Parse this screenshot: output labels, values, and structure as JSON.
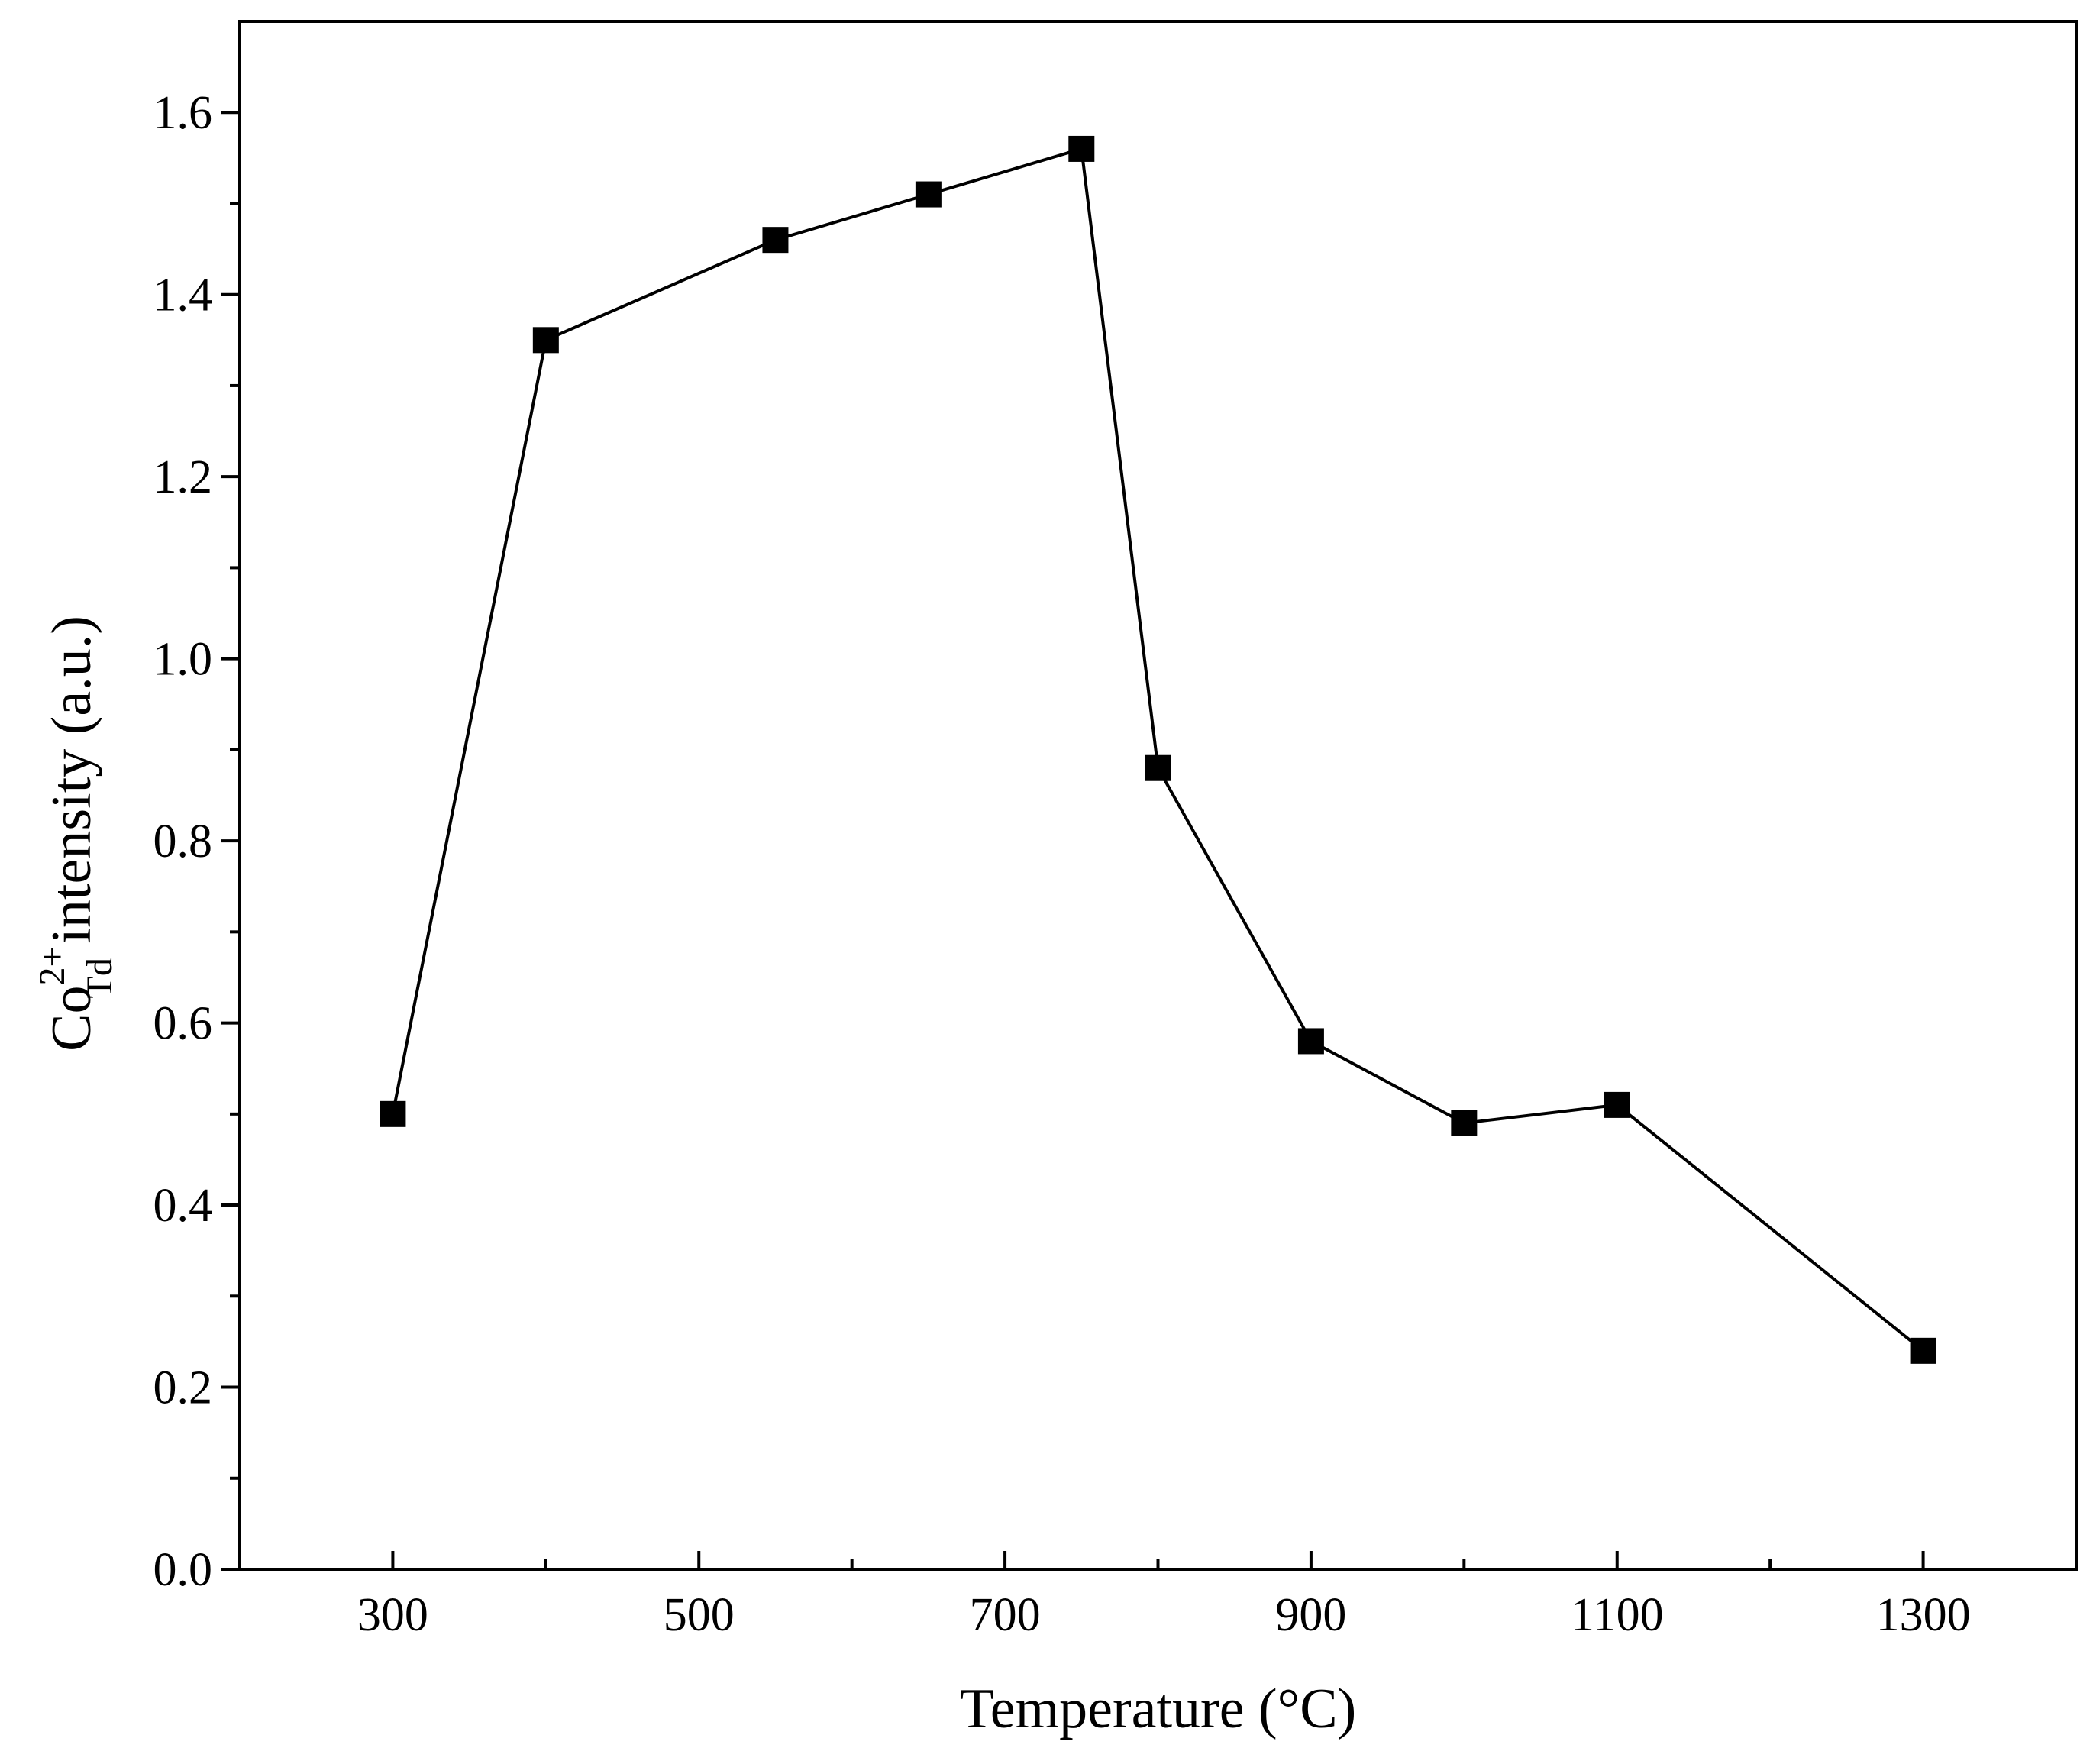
{
  "chart_data": {
    "type": "line",
    "title": "",
    "xlabel": "Temperature (°C)",
    "ylabel": {
      "base": "Co",
      "superscript": "2+",
      "subscript": "Td",
      "rest": " intensity (a.u.)"
    },
    "xlim": [
      200,
      1400
    ],
    "ylim": [
      0.0,
      1.7
    ],
    "x_major_ticks": [
      300,
      500,
      700,
      900,
      1100,
      1300
    ],
    "x_minor_ticks": [
      400,
      600,
      800,
      1000,
      1200
    ],
    "x_tick_labels": [
      "300",
      "500",
      "700",
      "900",
      "1100",
      "1300"
    ],
    "y_major_ticks": [
      0.0,
      0.2,
      0.4,
      0.6,
      0.8,
      1.0,
      1.2,
      1.4,
      1.6
    ],
    "y_minor_ticks": [
      0.1,
      0.3,
      0.5,
      0.7,
      0.9,
      1.1,
      1.3,
      1.5
    ],
    "y_tick_labels": [
      "0.0",
      "0.2",
      "0.4",
      "0.6",
      "0.8",
      "1.0",
      "1.2",
      "1.4",
      "1.6"
    ],
    "grid": false,
    "series": [
      {
        "name": "Co2+ Td intensity",
        "marker": "square",
        "color": "#000000",
        "x": [
          300,
          400,
          550,
          650,
          750,
          800,
          900,
          1000,
          1100,
          1300
        ],
        "y": [
          0.5,
          1.35,
          1.46,
          1.51,
          1.56,
          0.88,
          0.58,
          0.49,
          0.51,
          0.24
        ]
      }
    ]
  }
}
